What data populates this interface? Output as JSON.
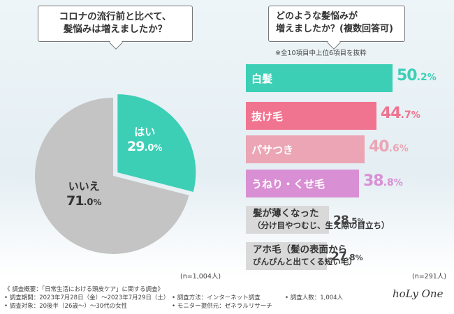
{
  "chart_data": [
    {
      "type": "pie",
      "title": "コロナの流行前と比べて、髪悩みは増えましたか？",
      "title_lines": [
        "コロナの流行前と比べて、",
        "髪悩みは増えましたか？"
      ],
      "slices": [
        {
          "label": "はい",
          "value": 29.0,
          "color": "#3ccfb6"
        },
        {
          "label": "いいえ",
          "value": 71.0,
          "color": "#c4c4c4"
        }
      ],
      "n_label": "(n=1,004人)"
    },
    {
      "type": "bar",
      "title": "どのような髪悩みが増えましたか？(複数回答可)",
      "title_lines": [
        "どのような髪悩みが",
        "増えましたか？(複数回答可)"
      ],
      "note": "※全10項目中上位6項目を抜粋",
      "categories": [
        "白髪",
        "抜け毛",
        "パサつき",
        "うねり・くせ毛",
        "髪が薄くなった（分け目やつむじ、生え際の目立ち）",
        "アホ毛（髪の表面からぴんぴんと出てくる短い毛）"
      ],
      "category_lines": [
        [
          "白髪"
        ],
        [
          "抜け毛"
        ],
        [
          "パサつき"
        ],
        [
          "うねり・くせ毛"
        ],
        [
          "髪が薄くなった",
          "（分け目やつむじ、生え際の目立ち）"
        ],
        [
          "アホ毛（髪の表面から",
          "ぴんぴんと出てくる短い毛）"
        ]
      ],
      "values": [
        50.2,
        44.7,
        40.6,
        38.8,
        28.5,
        27.8
      ],
      "colors": [
        "#3ccfb6",
        "#f0738f",
        "#eba5b4",
        "#d98fd3",
        "#d9d9d9",
        "#d9d9d9"
      ],
      "unit": "%",
      "n_label": "(n=291人)"
    }
  ],
  "footer": {
    "overview": "《 調査概要：「日常生活における頭皮ケア」に関する調査》",
    "period": "• 調査期間：2023年7月28日（金）～2023年7月29日（土）",
    "target": "• 調査対象：20後半（26歳～）～30代の女性",
    "method": "• 調査方法：インターネット調査",
    "monitor": "• モニター提供元：ゼネラルリサーチ",
    "count": "• 調査人数：1,004人"
  },
  "logo_text": "hoLy One"
}
